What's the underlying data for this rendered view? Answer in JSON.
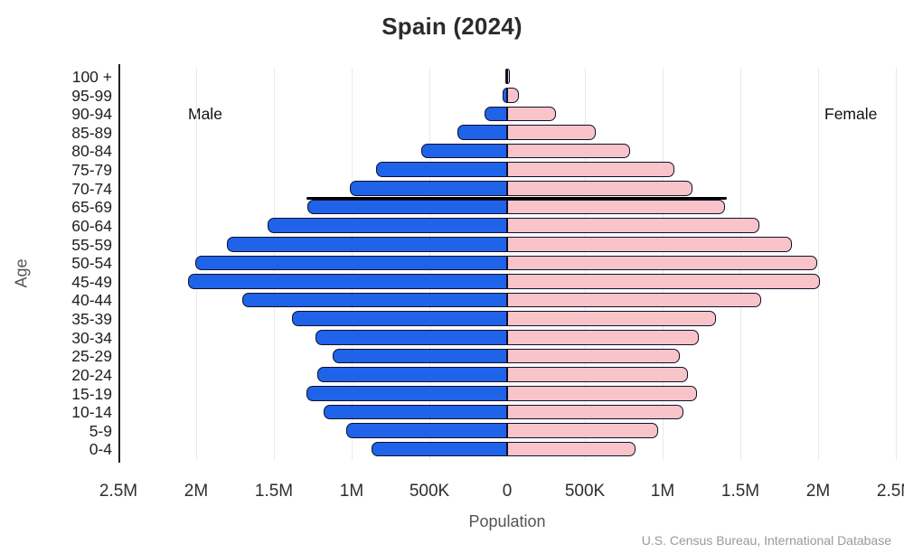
{
  "title": "Spain (2024)",
  "side_labels": {
    "male": "Male",
    "female": "Female"
  },
  "axis": {
    "y_label": "Age",
    "x_label": "Population",
    "x_ticks": [
      "2.5M",
      "2M",
      "1.5M",
      "1M",
      "500K",
      "0",
      "500K",
      "1M",
      "1.5M",
      "2M",
      "2.5M"
    ]
  },
  "source": "U.S. Census Bureau, International Database",
  "colors": {
    "male_bar": "#1f63e8",
    "female_bar": "#f8c4c9",
    "bar_border": "#10102b",
    "gridline": "#e9e9e9",
    "axis_spine": "#222222",
    "marker_line": "#000000",
    "source_text": "#9a9a9a"
  },
  "chart_data": {
    "type": "bar",
    "subtype": "population-pyramid",
    "title": "Spain (2024)",
    "xlabel": "Population",
    "ylabel": "Age",
    "grid": true,
    "x_range_per_side": 2500000,
    "unit": "persons, values in thousands",
    "categories": [
      "100 +",
      "95-99",
      "90-94",
      "85-89",
      "80-84",
      "75-79",
      "70-74",
      "65-69",
      "60-64",
      "55-59",
      "50-54",
      "45-49",
      "40-44",
      "35-39",
      "30-34",
      "25-29",
      "20-24",
      "15-19",
      "10-14",
      "5-9",
      "0-4"
    ],
    "series": [
      {
        "name": "Male",
        "side": "left",
        "values_thousands": [
          10,
          35,
          150,
          325,
          560,
          850,
          1020,
          1290,
          1550,
          1810,
          2010,
          2060,
          1710,
          1390,
          1240,
          1130,
          1230,
          1300,
          1190,
          1040,
          880
        ]
      },
      {
        "name": "Female",
        "side": "right",
        "values_thousands": [
          25,
          80,
          320,
          575,
          800,
          1080,
          1200,
          1410,
          1630,
          1840,
          2000,
          2020,
          1640,
          1350,
          1240,
          1120,
          1170,
          1230,
          1140,
          980,
          830
        ]
      }
    ],
    "highlighted_boundary_age_group": "65-69",
    "note": "thick black horizontal line drawn along the top edge of the 65-69 bars"
  }
}
